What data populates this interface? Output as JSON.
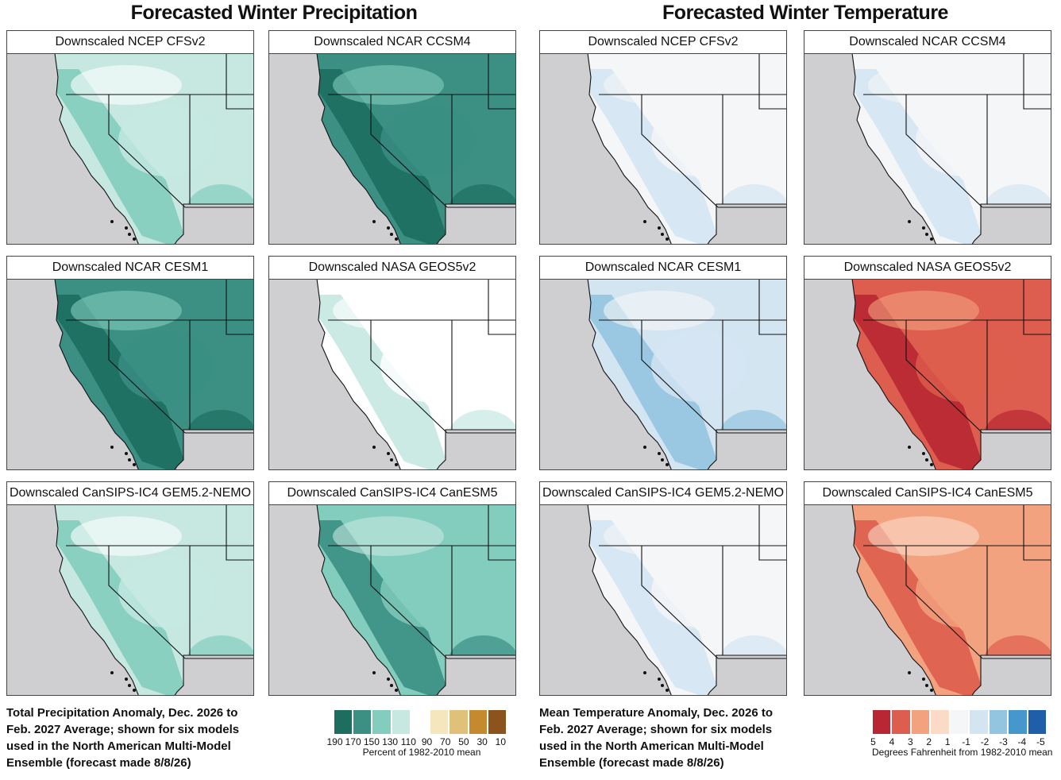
{
  "titles": {
    "precip": "Forecasted Winter Precipitation",
    "temp": "Forecasted Winter Temperature"
  },
  "precip_panels": [
    {
      "title": "Downscaled NCEP CFSv2",
      "level": 2
    },
    {
      "title": "Downscaled NCAR CCSM4",
      "level": 4
    },
    {
      "title": "Downscaled NCAR CESM1",
      "level": 4
    },
    {
      "title": "Downscaled NASA GEOS5v2",
      "level": 1
    },
    {
      "title": "Downscaled CanSIPS-IC4 GEM5.2-NEMO",
      "level": 2
    },
    {
      "title": "Downscaled CanSIPS-IC4 CanESM5",
      "level": 3
    }
  ],
  "temp_panels": [
    {
      "title": "Downscaled NCEP CFSv2",
      "level": 1
    },
    {
      "title": "Downscaled NCAR CCSM4",
      "level": 1
    },
    {
      "title": "Downscaled NCAR CESM1",
      "level": 2
    },
    {
      "title": "Downscaled NASA GEOS5v2",
      "level": 3
    },
    {
      "title": "Downscaled CanSIPS-IC4 GEM5.2-NEMO",
      "level": 1
    },
    {
      "title": "Downscaled CanSIPS-IC4 CanESM5",
      "level": 2
    }
  ],
  "precip_caption": "Total Precipitation Anomaly, Dec. 2026 to Feb. 2027 Average; shown for six models used in the North American Multi-Model Ensemble (forecast made 8/8/26)",
  "temp_caption": "Mean Temperature Anomaly, Dec. 2026 to Feb. 2027 Average; shown for six models used in the North American Multi-Model Ensemble (forecast made 8/8/26)",
  "precip_legend": {
    "colors": [
      "#1d6e5f",
      "#3b8f83",
      "#82cdbe",
      "#c6e8e1",
      "#ffffff",
      "#f6e6bd",
      "#e0c17a",
      "#c58a2e",
      "#8c531c"
    ],
    "ticks": [
      "190",
      "170",
      "150",
      "130",
      "110",
      "90",
      "70",
      "50",
      "30",
      "10"
    ],
    "title": "Percent of 1982-2010 mean"
  },
  "temp_legend": {
    "colors": [
      "#b82733",
      "#dd5e4e",
      "#f3a27f",
      "#fbdac8",
      "#f5f6f7",
      "#d4e5f2",
      "#93c4e0",
      "#4597cc",
      "#1f5ea8"
    ],
    "ticks": [
      "5",
      "4",
      "3",
      "2",
      "1",
      "-1",
      "-2",
      "-3",
      "-4",
      "-5"
    ],
    "title": "Degrees Fahrenheit from 1982-2010 mean"
  },
  "map_colors": {
    "land_outside": "#cfcfd2",
    "ocean": "#cfcfd2",
    "mexico": "#e6e6e8",
    "border": "#111111"
  }
}
